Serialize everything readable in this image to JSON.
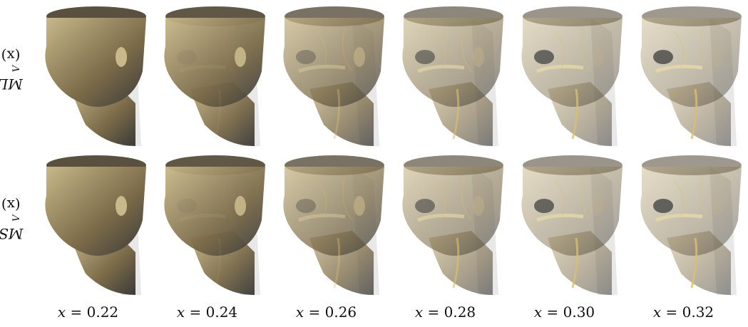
{
  "rows": [
    {
      "label_main": "ML",
      "label_sub": "V",
      "label_arg": "(x)"
    },
    {
      "label_main": "MS",
      "label_sub": "V",
      "label_arg": "(x)"
    }
  ],
  "columns": [
    {
      "x_var": "x",
      "eq": " = ",
      "value": "0.22",
      "opacity": 1.0
    },
    {
      "x_var": "x",
      "eq": " = ",
      "value": "0.24",
      "opacity": 0.92
    },
    {
      "x_var": "x",
      "eq": " = ",
      "value": "0.26",
      "opacity": 0.62
    },
    {
      "x_var": "x",
      "eq": " = ",
      "value": "0.28",
      "opacity": 0.38
    },
    {
      "x_var": "x",
      "eq": " = ",
      "value": "0.30",
      "opacity": 0.22
    },
    {
      "x_var": "x",
      "eq": " = ",
      "value": "0.32",
      "opacity": 0.18
    }
  ],
  "colors": {
    "skin": "#c8b88a",
    "skin_dark": "#7a6a48",
    "shadow": "#3a3a3a",
    "bone": "#e6d8a8",
    "vessel": "#d9c070",
    "background": "#ffffff"
  }
}
